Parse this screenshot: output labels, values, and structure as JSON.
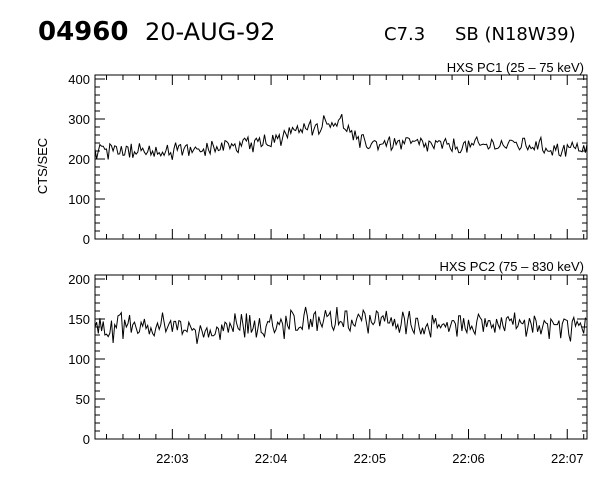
{
  "header": {
    "flare_id": "04960",
    "date": "20-AUG-92",
    "goes_class": "C7.3",
    "location": "SB (N18W39)"
  },
  "chart_data": [
    {
      "type": "line",
      "title": "HXS PC1 (25 – 75 keV)",
      "ylabel": "CTS/SEC",
      "xlabel": "",
      "ylim": [
        0,
        410
      ],
      "yticks": [
        0,
        100,
        200,
        300,
        400
      ],
      "xlim": [
        "22:02:13",
        "22:07:12"
      ],
      "xtick_labels": [
        "22:03",
        "22:04",
        "22:05",
        "22:06",
        "22:07"
      ],
      "sample_interval_s": 1.5,
      "grid": false,
      "series": [
        {
          "baseline": [
            [
              0,
              220
            ],
            [
              30,
              220
            ],
            [
              60,
              225
            ],
            [
              90,
              235
            ],
            [
              110,
              250
            ],
            [
              125,
              270
            ],
            [
              140,
              290
            ],
            [
              150,
              295
            ],
            [
              155,
              265
            ],
            [
              160,
              240
            ],
            [
              190,
              240
            ],
            [
              200,
              235
            ],
            [
              225,
              230
            ],
            [
              240,
              235
            ],
            [
              260,
              238
            ],
            [
              280,
              225
            ],
            [
              299,
              230
            ]
          ],
          "noise_amplitude": 26,
          "values": []
        }
      ]
    },
    {
      "type": "line",
      "title": "HXS PC2 (75 – 830 keV)",
      "ylabel": "",
      "xlabel": "",
      "ylim": [
        0,
        205
      ],
      "yticks": [
        0,
        50,
        100,
        150,
        200
      ],
      "xlim": [
        "22:02:13",
        "22:07:12"
      ],
      "xtick_labels": [
        "22:03",
        "22:04",
        "22:05",
        "22:06",
        "22:07"
      ],
      "sample_interval_s": 1.5,
      "grid": false,
      "series": [
        {
          "baseline": [
            [
              0,
              140
            ],
            [
              100,
              140
            ],
            [
              130,
              148
            ],
            [
              160,
              148
            ],
            [
              200,
              142
            ],
            [
              299,
              140
            ]
          ],
          "noise_amplitude": 22,
          "values": []
        }
      ]
    }
  ]
}
